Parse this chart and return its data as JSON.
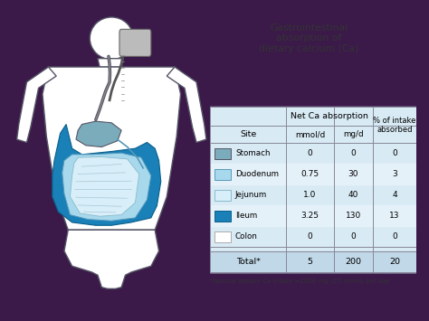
{
  "title": "Gastrointestinal\nabsorption of\ndietary calcium (Ca)",
  "bg_color": "#3b1a4a",
  "card_color": "#f5f2ee",
  "table_bg": "#d8eaf4",
  "table_bg_alt": "#e8f3f9",
  "sites": [
    "Stomach",
    "Duodenum",
    "Jejunum",
    "Ileum",
    "Colon"
  ],
  "mmol": [
    "0",
    "0.75",
    "1.0",
    "3.25",
    "0"
  ],
  "mgd": [
    "0",
    "30",
    "40",
    "130",
    "0"
  ],
  "pct": [
    "0",
    "3",
    "4",
    "13",
    "0"
  ],
  "total_label": "Total*",
  "total_mmol": "5",
  "total_mgd": "200",
  "total_pct": "20",
  "footnote": "*Normal dietary Ca intake =1000 mg (25 mmol) per day",
  "site_colors": [
    "#7aacbb",
    "#a8d8ec",
    "#d8eef8",
    "#1a80b8",
    "#ffffff"
  ],
  "site_edge_colors": [
    "#555566",
    "#5599bb",
    "#88bbcc",
    "#0a5f8a",
    "#aaaaaa"
  ],
  "stomach_color": "#7aacbb",
  "colon_color": "#1a80b8",
  "jejunum_color": "#d8eef8",
  "duodenum_color": "#a8d8ec",
  "body_line_color": "#555566",
  "body_fill": "#ffffff"
}
